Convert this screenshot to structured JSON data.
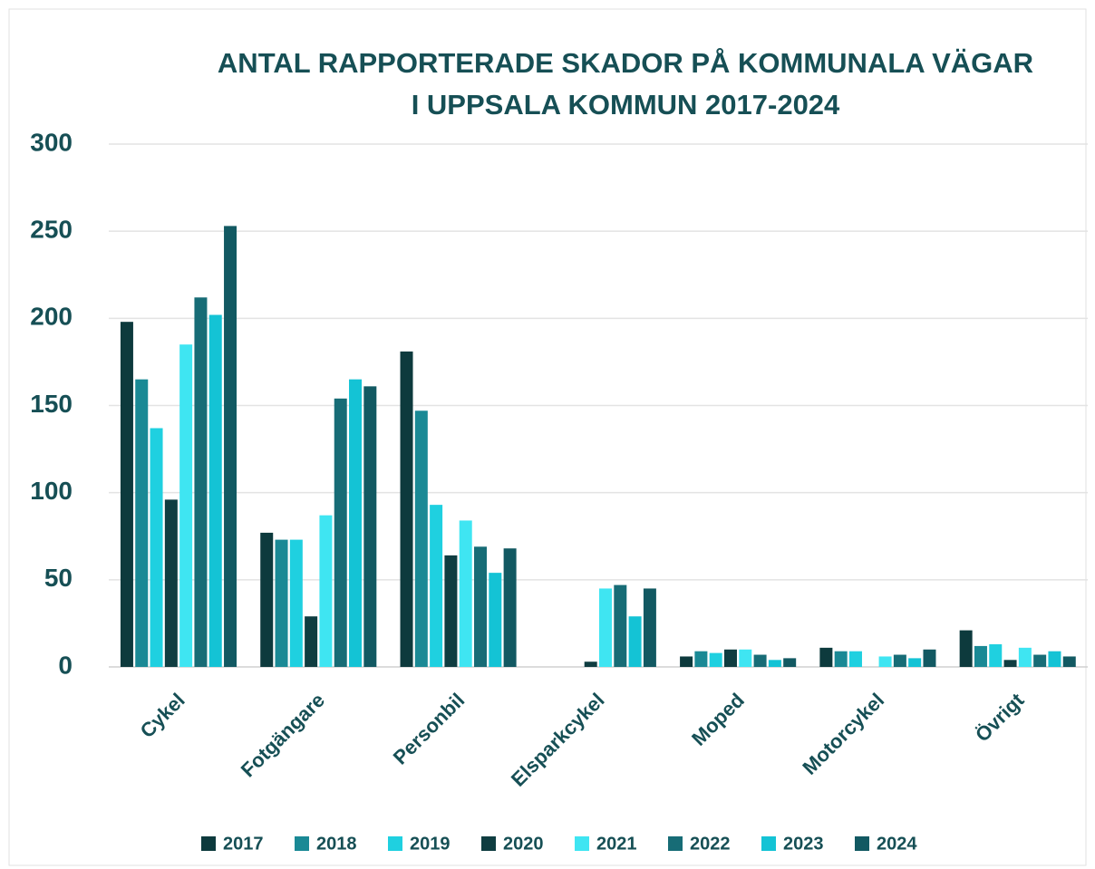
{
  "chart_data": {
    "type": "bar",
    "title": [
      "ANTAL RAPPORTERADE SKADOR PÅ KOMMUNALA VÄGAR",
      "I UPPSALA KOMMUN 2017-2024"
    ],
    "categories": [
      "Cykel",
      "Fotgängare",
      "Personbil",
      "Elsparkcykel",
      "Moped",
      "Motorcykel",
      "Övrigt"
    ],
    "series": [
      {
        "name": "2017",
        "color": "#0d3a3d",
        "values": [
          198,
          77,
          181,
          null,
          6,
          11,
          21
        ]
      },
      {
        "name": "2018",
        "color": "#1a8995",
        "values": [
          165,
          73,
          147,
          null,
          9,
          9,
          12
        ]
      },
      {
        "name": "2019",
        "color": "#1fd0e0",
        "values": [
          137,
          73,
          93,
          null,
          8,
          9,
          13
        ]
      },
      {
        "name": "2020",
        "color": "#0f3d41",
        "values": [
          96,
          29,
          64,
          3,
          10,
          null,
          4
        ]
      },
      {
        "name": "2021",
        "color": "#3fe5f2",
        "values": [
          185,
          87,
          84,
          45,
          10,
          6,
          11
        ]
      },
      {
        "name": "2022",
        "color": "#176c76",
        "values": [
          212,
          154,
          69,
          47,
          7,
          7,
          7
        ]
      },
      {
        "name": "2023",
        "color": "#14c3d5",
        "values": [
          202,
          165,
          54,
          29,
          4,
          5,
          9
        ]
      },
      {
        "name": "2024",
        "color": "#125962",
        "values": [
          253,
          161,
          68,
          45,
          5,
          10,
          6
        ]
      }
    ],
    "ylim": [
      0,
      300
    ],
    "yticks": [
      0,
      50,
      100,
      150,
      200,
      250,
      300
    ],
    "grid": true,
    "legend": "bottom"
  }
}
